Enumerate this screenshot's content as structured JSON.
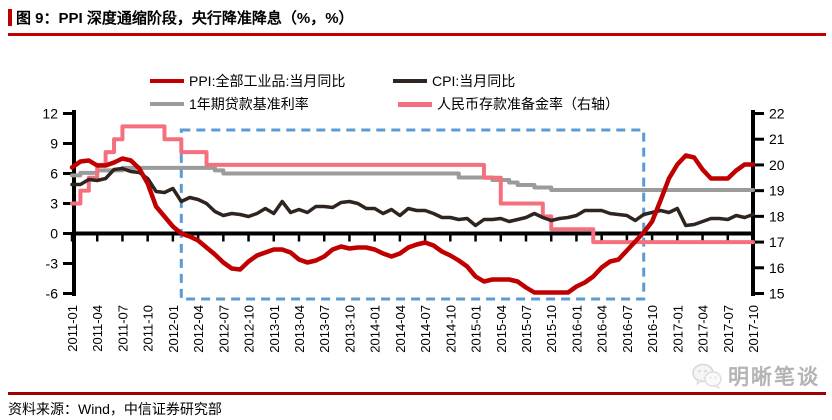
{
  "title": {
    "text": "图 9：PPI 深度通缩阶段，央行降准降息（%，%）"
  },
  "source": {
    "text": "资料来源：Wind，中信证券研究部"
  },
  "watermark": {
    "text": "明晰笔谈",
    "icon": "wechat-icon"
  },
  "colors": {
    "title_accent": "#C00000",
    "ppi_line": "#C00000",
    "cpi_line": "#2E2420",
    "loan_line": "#9B9B9B",
    "rrr_line": "#F5707F",
    "highlight_box": "#5B9BD5",
    "bottom_rule": "#A00000"
  },
  "chart_data": {
    "type": "line",
    "frequency": "monthly",
    "x_start": "2011-01",
    "x_end": "2017-10",
    "x_tick_labels": [
      "2011-01",
      "2011-04",
      "2011-07",
      "2011-10",
      "2012-01",
      "2012-04",
      "2012-07",
      "2012-10",
      "2013-01",
      "2013-04",
      "2013-07",
      "2013-10",
      "2014-01",
      "2014-04",
      "2014-07",
      "2014-10",
      "2015-01",
      "2015-04",
      "2015-07",
      "2015-10",
      "2016-01",
      "2016-04",
      "2016-07",
      "2016-10",
      "2017-01",
      "2017-04",
      "2017-07",
      "2017-10"
    ],
    "left_axis": {
      "ticks": [
        12,
        9,
        6,
        3,
        0,
        -3,
        -6
      ],
      "range": [
        -6,
        12
      ]
    },
    "right_axis": {
      "ticks": [
        22,
        21,
        20,
        19,
        18,
        17,
        16,
        15
      ],
      "range": [
        15,
        22
      ]
    },
    "grid": false,
    "legend_position": "top",
    "highlight_box": {
      "x_from": "2012-02",
      "x_to": "2016-09",
      "y_range_left": [
        10.35,
        -6.55
      ],
      "color": "#5B9BD5",
      "style": "dashed"
    },
    "series": [
      {
        "name": "PPI:全部工业品:当月同比",
        "axis": "left",
        "style": "line",
        "color": "#C00000",
        "values": [
          6.6,
          7.2,
          7.3,
          6.8,
          6.8,
          7.1,
          7.5,
          7.3,
          6.5,
          5.0,
          2.7,
          1.7,
          0.7,
          0.0,
          -0.3,
          -0.7,
          -1.4,
          -2.1,
          -2.9,
          -3.5,
          -3.6,
          -2.8,
          -2.2,
          -1.9,
          -1.6,
          -1.6,
          -1.9,
          -2.6,
          -2.9,
          -2.7,
          -2.3,
          -1.6,
          -1.3,
          -1.5,
          -1.4,
          -1.4,
          -1.6,
          -2.0,
          -2.3,
          -2.0,
          -1.4,
          -1.1,
          -0.9,
          -1.2,
          -1.8,
          -2.2,
          -2.7,
          -3.3,
          -4.3,
          -4.8,
          -4.6,
          -4.6,
          -4.6,
          -4.8,
          -5.4,
          -5.9,
          -5.9,
          -5.9,
          -5.9,
          -5.9,
          -5.3,
          -4.9,
          -4.3,
          -3.4,
          -2.8,
          -2.6,
          -1.7,
          -0.8,
          0.1,
          1.2,
          3.3,
          5.5,
          6.9,
          7.8,
          7.6,
          6.4,
          5.5,
          5.5,
          5.5,
          6.3,
          6.9,
          6.9
        ]
      },
      {
        "name": "CPI:当月同比",
        "axis": "left",
        "style": "line",
        "color": "#2E2420",
        "values": [
          4.9,
          4.9,
          5.4,
          5.3,
          5.5,
          6.4,
          6.5,
          6.2,
          6.1,
          5.5,
          4.2,
          4.1,
          4.5,
          3.2,
          3.6,
          3.4,
          3.0,
          2.2,
          1.8,
          2.0,
          1.9,
          1.7,
          2.0,
          2.5,
          2.0,
          3.2,
          2.1,
          2.4,
          2.1,
          2.7,
          2.7,
          2.6,
          3.1,
          3.2,
          3.0,
          2.5,
          2.5,
          2.0,
          2.4,
          1.8,
          2.5,
          2.3,
          2.3,
          2.0,
          1.6,
          1.6,
          1.4,
          1.5,
          0.8,
          1.4,
          1.4,
          1.5,
          1.2,
          1.4,
          1.6,
          2.0,
          1.6,
          1.3,
          1.5,
          1.6,
          1.8,
          2.3,
          2.3,
          2.3,
          2.0,
          1.9,
          1.8,
          1.3,
          1.9,
          2.1,
          2.3,
          2.1,
          2.5,
          0.8,
          0.9,
          1.2,
          1.5,
          1.5,
          1.4,
          1.8,
          1.6,
          1.9
        ]
      },
      {
        "name": "1年期贷款基准利率",
        "axis": "left",
        "style": "step",
        "color": "#9B9B9B",
        "values": [
          5.81,
          6.06,
          6.06,
          6.31,
          6.31,
          6.31,
          6.56,
          6.56,
          6.56,
          6.56,
          6.56,
          6.56,
          6.56,
          6.56,
          6.56,
          6.56,
          6.56,
          6.31,
          6.0,
          6.0,
          6.0,
          6.0,
          6.0,
          6.0,
          6.0,
          6.0,
          6.0,
          6.0,
          6.0,
          6.0,
          6.0,
          6.0,
          6.0,
          6.0,
          6.0,
          6.0,
          6.0,
          6.0,
          6.0,
          6.0,
          6.0,
          6.0,
          6.0,
          6.0,
          6.0,
          6.0,
          5.6,
          5.6,
          5.6,
          5.6,
          5.35,
          5.35,
          5.1,
          4.85,
          4.85,
          4.6,
          4.6,
          4.35,
          4.35,
          4.35,
          4.35,
          4.35,
          4.35,
          4.35,
          4.35,
          4.35,
          4.35,
          4.35,
          4.35,
          4.35,
          4.35,
          4.35,
          4.35,
          4.35,
          4.35,
          4.35,
          4.35,
          4.35,
          4.35,
          4.35,
          4.35,
          4.35
        ]
      },
      {
        "name": "人民币存款准备金率（右轴）",
        "axis": "right",
        "style": "step",
        "color": "#F5707F",
        "values": [
          18.5,
          19.0,
          19.5,
          20.0,
          20.5,
          21.0,
          21.5,
          21.5,
          21.5,
          21.5,
          21.5,
          21.0,
          21.0,
          20.5,
          20.5,
          20.5,
          20.0,
          20.0,
          20.0,
          20.0,
          20.0,
          20.0,
          20.0,
          20.0,
          20.0,
          20.0,
          20.0,
          20.0,
          20.0,
          20.0,
          20.0,
          20.0,
          20.0,
          20.0,
          20.0,
          20.0,
          20.0,
          20.0,
          20.0,
          20.0,
          20.0,
          20.0,
          20.0,
          20.0,
          20.0,
          20.0,
          20.0,
          20.0,
          20.0,
          19.5,
          19.5,
          18.5,
          18.5,
          18.5,
          18.5,
          18.5,
          18.0,
          17.5,
          17.5,
          17.5,
          17.5,
          17.5,
          17.0,
          17.0,
          17.0,
          17.0,
          17.0,
          17.0,
          17.0,
          17.0,
          17.0,
          17.0,
          17.0,
          17.0,
          17.0,
          17.0,
          17.0,
          17.0,
          17.0,
          17.0,
          17.0,
          17.0
        ]
      }
    ]
  },
  "legend": {
    "items": [
      "PPI:全部工业品:当月同比",
      "CPI:当月同比",
      "1年期贷款基准利率",
      "人民币存款准备金率（右轴）"
    ]
  }
}
